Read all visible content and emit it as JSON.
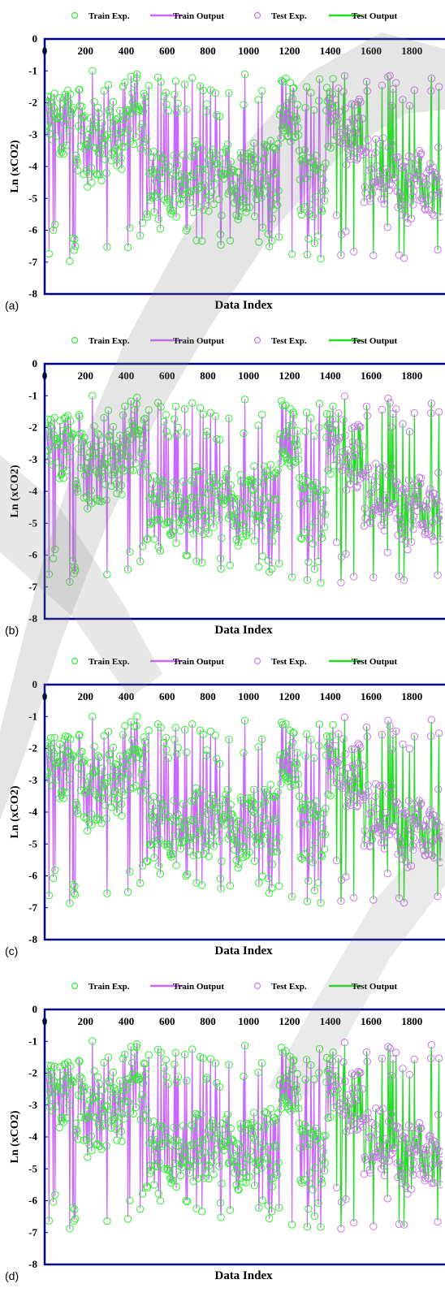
{
  "legend": {
    "train_exp": "Train Exp.",
    "train_output": "Train Output",
    "test_exp": "Test Exp.",
    "test_output": "Test Output"
  },
  "colors": {
    "train": "#33ee33",
    "test_exp": "#cc77ee",
    "train_output": "#cc66ff",
    "test_output": "#22dd22",
    "axis": "#000080"
  },
  "chart_data": [
    {
      "type": "scatter",
      "panel_label": "(a)",
      "xlabel": "Data Index",
      "ylabel": "Ln (xCO2)",
      "xlim": [
        0,
        1950
      ],
      "ylim": [
        -8,
        0
      ],
      "x_ticks": [
        0,
        200,
        400,
        600,
        800,
        1000,
        1200,
        1400,
        1600,
        1800
      ],
      "y_ticks": [
        0,
        -1,
        -2,
        -3,
        -4,
        -5,
        -6,
        -7,
        -8
      ],
      "train_range": [
        0,
        1420
      ],
      "test_range": [
        1420,
        1950
      ],
      "series": [
        {
          "name": "Train Exp.",
          "style": "marker"
        },
        {
          "name": "Train Output",
          "style": "line"
        },
        {
          "name": "Test Exp.",
          "style": "marker"
        },
        {
          "name": "Test Output",
          "style": "line"
        }
      ]
    },
    {
      "type": "scatter",
      "panel_label": "(b)",
      "xlabel": "Data Index",
      "ylabel": "Ln (xCO2)",
      "xlim": [
        0,
        1950
      ],
      "ylim": [
        -8,
        0
      ],
      "x_ticks": [
        0,
        200,
        400,
        600,
        800,
        1000,
        1200,
        1400,
        1600,
        1800
      ],
      "y_ticks": [
        0,
        -1,
        -2,
        -3,
        -4,
        -5,
        -6,
        -7,
        -8
      ],
      "train_range": [
        0,
        1420
      ],
      "test_range": [
        1420,
        1950
      ],
      "series": [
        {
          "name": "Train Exp.",
          "style": "marker"
        },
        {
          "name": "Train Output",
          "style": "line"
        },
        {
          "name": "Test Exp.",
          "style": "marker"
        },
        {
          "name": "Test Output",
          "style": "line"
        }
      ]
    },
    {
      "type": "scatter",
      "panel_label": "(c)",
      "xlabel": "Data Index",
      "ylabel": "Ln (xCO2)",
      "xlim": [
        0,
        1950
      ],
      "ylim": [
        -8,
        0
      ],
      "x_ticks": [
        0,
        200,
        400,
        600,
        800,
        1000,
        1200,
        1400,
        1600,
        1800
      ],
      "y_ticks": [
        0,
        -1,
        -2,
        -3,
        -4,
        -5,
        -6,
        -7,
        -8
      ],
      "train_range": [
        0,
        1420
      ],
      "test_range": [
        1420,
        1950
      ],
      "series": [
        {
          "name": "Train Exp.",
          "style": "marker"
        },
        {
          "name": "Train Output",
          "style": "line"
        },
        {
          "name": "Test Exp.",
          "style": "marker"
        },
        {
          "name": "Test Output",
          "style": "line"
        }
      ]
    },
    {
      "type": "scatter",
      "panel_label": "(d)",
      "xlabel": "Data Index",
      "ylabel": "Ln (xCO2)",
      "xlim": [
        0,
        1950
      ],
      "ylim": [
        -8,
        0
      ],
      "x_ticks": [
        0,
        200,
        400,
        600,
        800,
        1000,
        1200,
        1400,
        1600,
        1800
      ],
      "y_ticks": [
        0,
        -1,
        -2,
        -3,
        -4,
        -5,
        -6,
        -7,
        -8
      ],
      "train_range": [
        0,
        1420
      ],
      "test_range": [
        1420,
        1950
      ],
      "series": [
        {
          "name": "Train Exp.",
          "style": "marker"
        },
        {
          "name": "Train Output",
          "style": "line"
        },
        {
          "name": "Test Exp.",
          "style": "marker"
        },
        {
          "name": "Test Output",
          "style": "line"
        }
      ]
    }
  ]
}
